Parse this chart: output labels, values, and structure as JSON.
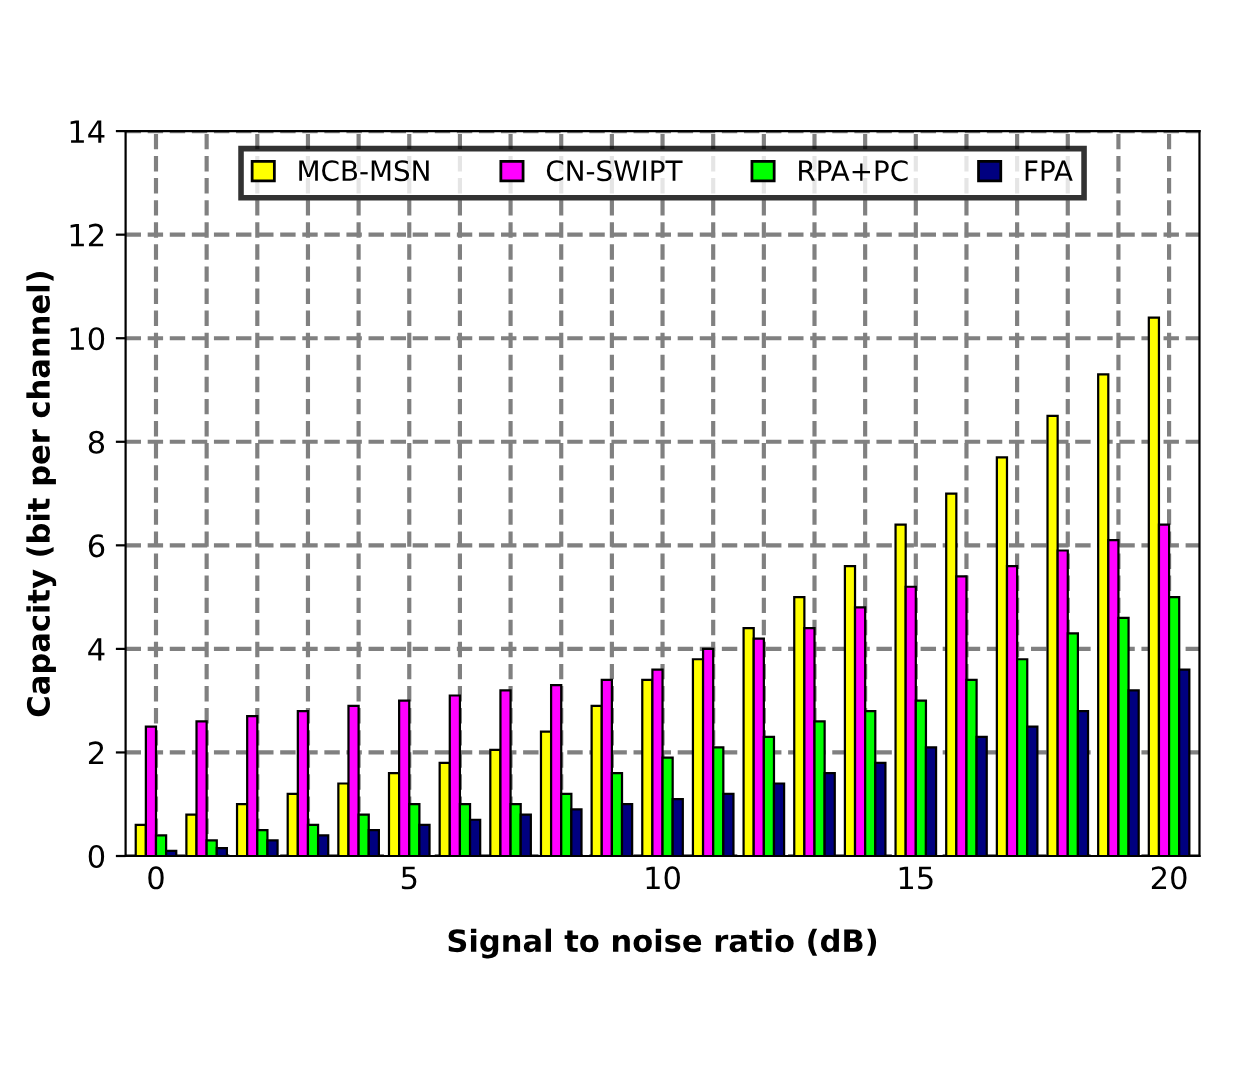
{
  "chart_data": {
    "type": "bar",
    "xlabel": "Signal to noise ratio (dB)",
    "ylabel": "Capacity (bit per channel)",
    "categories": [
      "0",
      null,
      null,
      null,
      null,
      "5",
      null,
      null,
      null,
      null,
      "10",
      null,
      null,
      null,
      null,
      "15",
      null,
      null,
      null,
      null,
      "20"
    ],
    "series": [
      {
        "name": "MCB-MSN",
        "color": "#ffff00",
        "values": [
          0.6,
          0.8,
          1.0,
          1.2,
          1.4,
          1.6,
          1.8,
          2.05,
          2.4,
          2.9,
          3.4,
          3.8,
          4.4,
          5.0,
          5.6,
          6.4,
          7.0,
          7.7,
          8.5,
          9.3,
          10.4
        ]
      },
      {
        "name": "CN-SWIPT",
        "color": "#ff00ff",
        "values": [
          2.5,
          2.6,
          2.7,
          2.8,
          2.9,
          3.0,
          3.1,
          3.2,
          3.3,
          3.4,
          3.6,
          4.0,
          4.2,
          4.4,
          4.8,
          5.2,
          5.4,
          5.6,
          5.9,
          6.1,
          6.4
        ]
      },
      {
        "name": "RPA+PC",
        "color": "#00ff00",
        "values": [
          0.4,
          0.3,
          0.5,
          0.6,
          0.8,
          1.0,
          1.0,
          1.0,
          1.2,
          1.6,
          1.9,
          2.1,
          2.3,
          2.6,
          2.8,
          3.0,
          3.4,
          3.8,
          4.3,
          4.6,
          5.0
        ]
      },
      {
        "name": "FPA",
        "color": "#000080",
        "values": [
          0.1,
          0.15,
          0.3,
          0.4,
          0.5,
          0.6,
          0.7,
          0.8,
          0.9,
          1.0,
          1.1,
          1.2,
          1.4,
          1.6,
          1.8,
          2.1,
          2.3,
          2.5,
          2.8,
          3.2,
          3.6
        ]
      }
    ],
    "ylim": [
      0,
      14
    ],
    "yticks": [
      0,
      2,
      4,
      6,
      8,
      10,
      12,
      14
    ],
    "grid": true,
    "legend": "top"
  }
}
